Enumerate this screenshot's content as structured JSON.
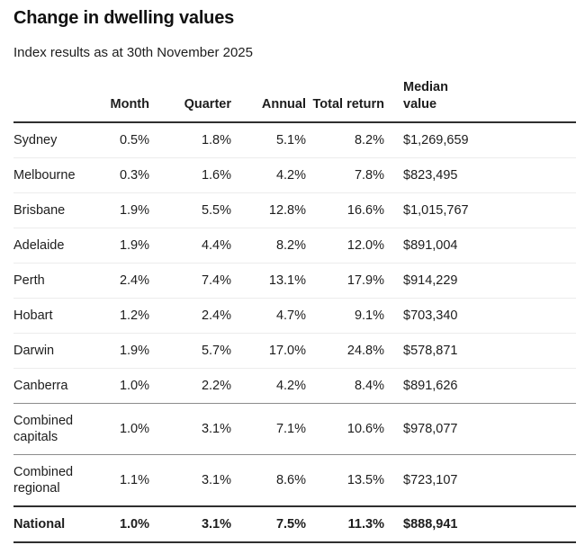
{
  "page": {
    "title": "Change in dwelling values",
    "subtitle": "Index results as at 30th November 2025"
  },
  "colors": {
    "background": "#ffffff",
    "text": "#1d1d1d",
    "rule_dark": "#2f2f2f",
    "rule_medium": "#8c8c8c",
    "rule_light": "#ececec"
  },
  "table": {
    "columns": [
      "",
      "Month",
      "Quarter",
      "Annual",
      "Total return",
      "Median value"
    ],
    "rows": [
      {
        "label": "Sydney",
        "month": "0.5%",
        "quarter": "1.8%",
        "annual": "5.1%",
        "total_return": "8.2%",
        "median_value": "$1,269,659",
        "divider_after": "light",
        "bold": false
      },
      {
        "label": "Melbourne",
        "month": "0.3%",
        "quarter": "1.6%",
        "annual": "4.2%",
        "total_return": "7.8%",
        "median_value": "$823,495",
        "divider_after": "light",
        "bold": false
      },
      {
        "label": "Brisbane",
        "month": "1.9%",
        "quarter": "5.5%",
        "annual": "12.8%",
        "total_return": "16.6%",
        "median_value": "$1,015,767",
        "divider_after": "light",
        "bold": false
      },
      {
        "label": "Adelaide",
        "month": "1.9%",
        "quarter": "4.4%",
        "annual": "8.2%",
        "total_return": "12.0%",
        "median_value": "$891,004",
        "divider_after": "light",
        "bold": false
      },
      {
        "label": "Perth",
        "month": "2.4%",
        "quarter": "7.4%",
        "annual": "13.1%",
        "total_return": "17.9%",
        "median_value": "$914,229",
        "divider_after": "light",
        "bold": false
      },
      {
        "label": "Hobart",
        "month": "1.2%",
        "quarter": "2.4%",
        "annual": "4.7%",
        "total_return": "9.1%",
        "median_value": "$703,340",
        "divider_after": "light",
        "bold": false
      },
      {
        "label": "Darwin",
        "month": "1.9%",
        "quarter": "5.7%",
        "annual": "17.0%",
        "total_return": "24.8%",
        "median_value": "$578,871",
        "divider_after": "light",
        "bold": false
      },
      {
        "label": "Canberra",
        "month": "1.0%",
        "quarter": "2.2%",
        "annual": "4.2%",
        "total_return": "8.4%",
        "median_value": "$891,626",
        "divider_after": "medium",
        "bold": false
      },
      {
        "label": "Combined capitals",
        "month": "1.0%",
        "quarter": "3.1%",
        "annual": "7.1%",
        "total_return": "10.6%",
        "median_value": "$978,077",
        "divider_after": "medium",
        "bold": false
      },
      {
        "label": "Combined regional",
        "month": "1.1%",
        "quarter": "3.1%",
        "annual": "8.6%",
        "total_return": "13.5%",
        "median_value": "$723,107",
        "divider_after": "dark",
        "bold": false
      },
      {
        "label": "National",
        "month": "1.0%",
        "quarter": "3.1%",
        "annual": "7.5%",
        "total_return": "11.3%",
        "median_value": "$888,941",
        "divider_after": "dark",
        "bold": true
      }
    ]
  },
  "chart_data": {
    "type": "table",
    "title": "Change in dwelling values",
    "subtitle": "Index results as at 30th November 2025",
    "columns": [
      "Month",
      "Quarter",
      "Annual",
      "Total return",
      "Median value"
    ],
    "rows": [
      {
        "region": "Sydney",
        "month_pct": 0.5,
        "quarter_pct": 1.8,
        "annual_pct": 5.1,
        "total_return_pct": 8.2,
        "median_value_aud": 1269659
      },
      {
        "region": "Melbourne",
        "month_pct": 0.3,
        "quarter_pct": 1.6,
        "annual_pct": 4.2,
        "total_return_pct": 7.8,
        "median_value_aud": 823495
      },
      {
        "region": "Brisbane",
        "month_pct": 1.9,
        "quarter_pct": 5.5,
        "annual_pct": 12.8,
        "total_return_pct": 16.6,
        "median_value_aud": 1015767
      },
      {
        "region": "Adelaide",
        "month_pct": 1.9,
        "quarter_pct": 4.4,
        "annual_pct": 8.2,
        "total_return_pct": 12.0,
        "median_value_aud": 891004
      },
      {
        "region": "Perth",
        "month_pct": 2.4,
        "quarter_pct": 7.4,
        "annual_pct": 13.1,
        "total_return_pct": 17.9,
        "median_value_aud": 914229
      },
      {
        "region": "Hobart",
        "month_pct": 1.2,
        "quarter_pct": 2.4,
        "annual_pct": 4.7,
        "total_return_pct": 9.1,
        "median_value_aud": 703340
      },
      {
        "region": "Darwin",
        "month_pct": 1.9,
        "quarter_pct": 5.7,
        "annual_pct": 17.0,
        "total_return_pct": 24.8,
        "median_value_aud": 578871
      },
      {
        "region": "Canberra",
        "month_pct": 1.0,
        "quarter_pct": 2.2,
        "annual_pct": 4.2,
        "total_return_pct": 8.4,
        "median_value_aud": 891626
      },
      {
        "region": "Combined capitals",
        "month_pct": 1.0,
        "quarter_pct": 3.1,
        "annual_pct": 7.1,
        "total_return_pct": 10.6,
        "median_value_aud": 978077
      },
      {
        "region": "Combined regional",
        "month_pct": 1.1,
        "quarter_pct": 3.1,
        "annual_pct": 8.6,
        "total_return_pct": 13.5,
        "median_value_aud": 723107
      },
      {
        "region": "National",
        "month_pct": 1.0,
        "quarter_pct": 3.1,
        "annual_pct": 7.5,
        "total_return_pct": 11.3,
        "median_value_aud": 888941
      }
    ]
  }
}
